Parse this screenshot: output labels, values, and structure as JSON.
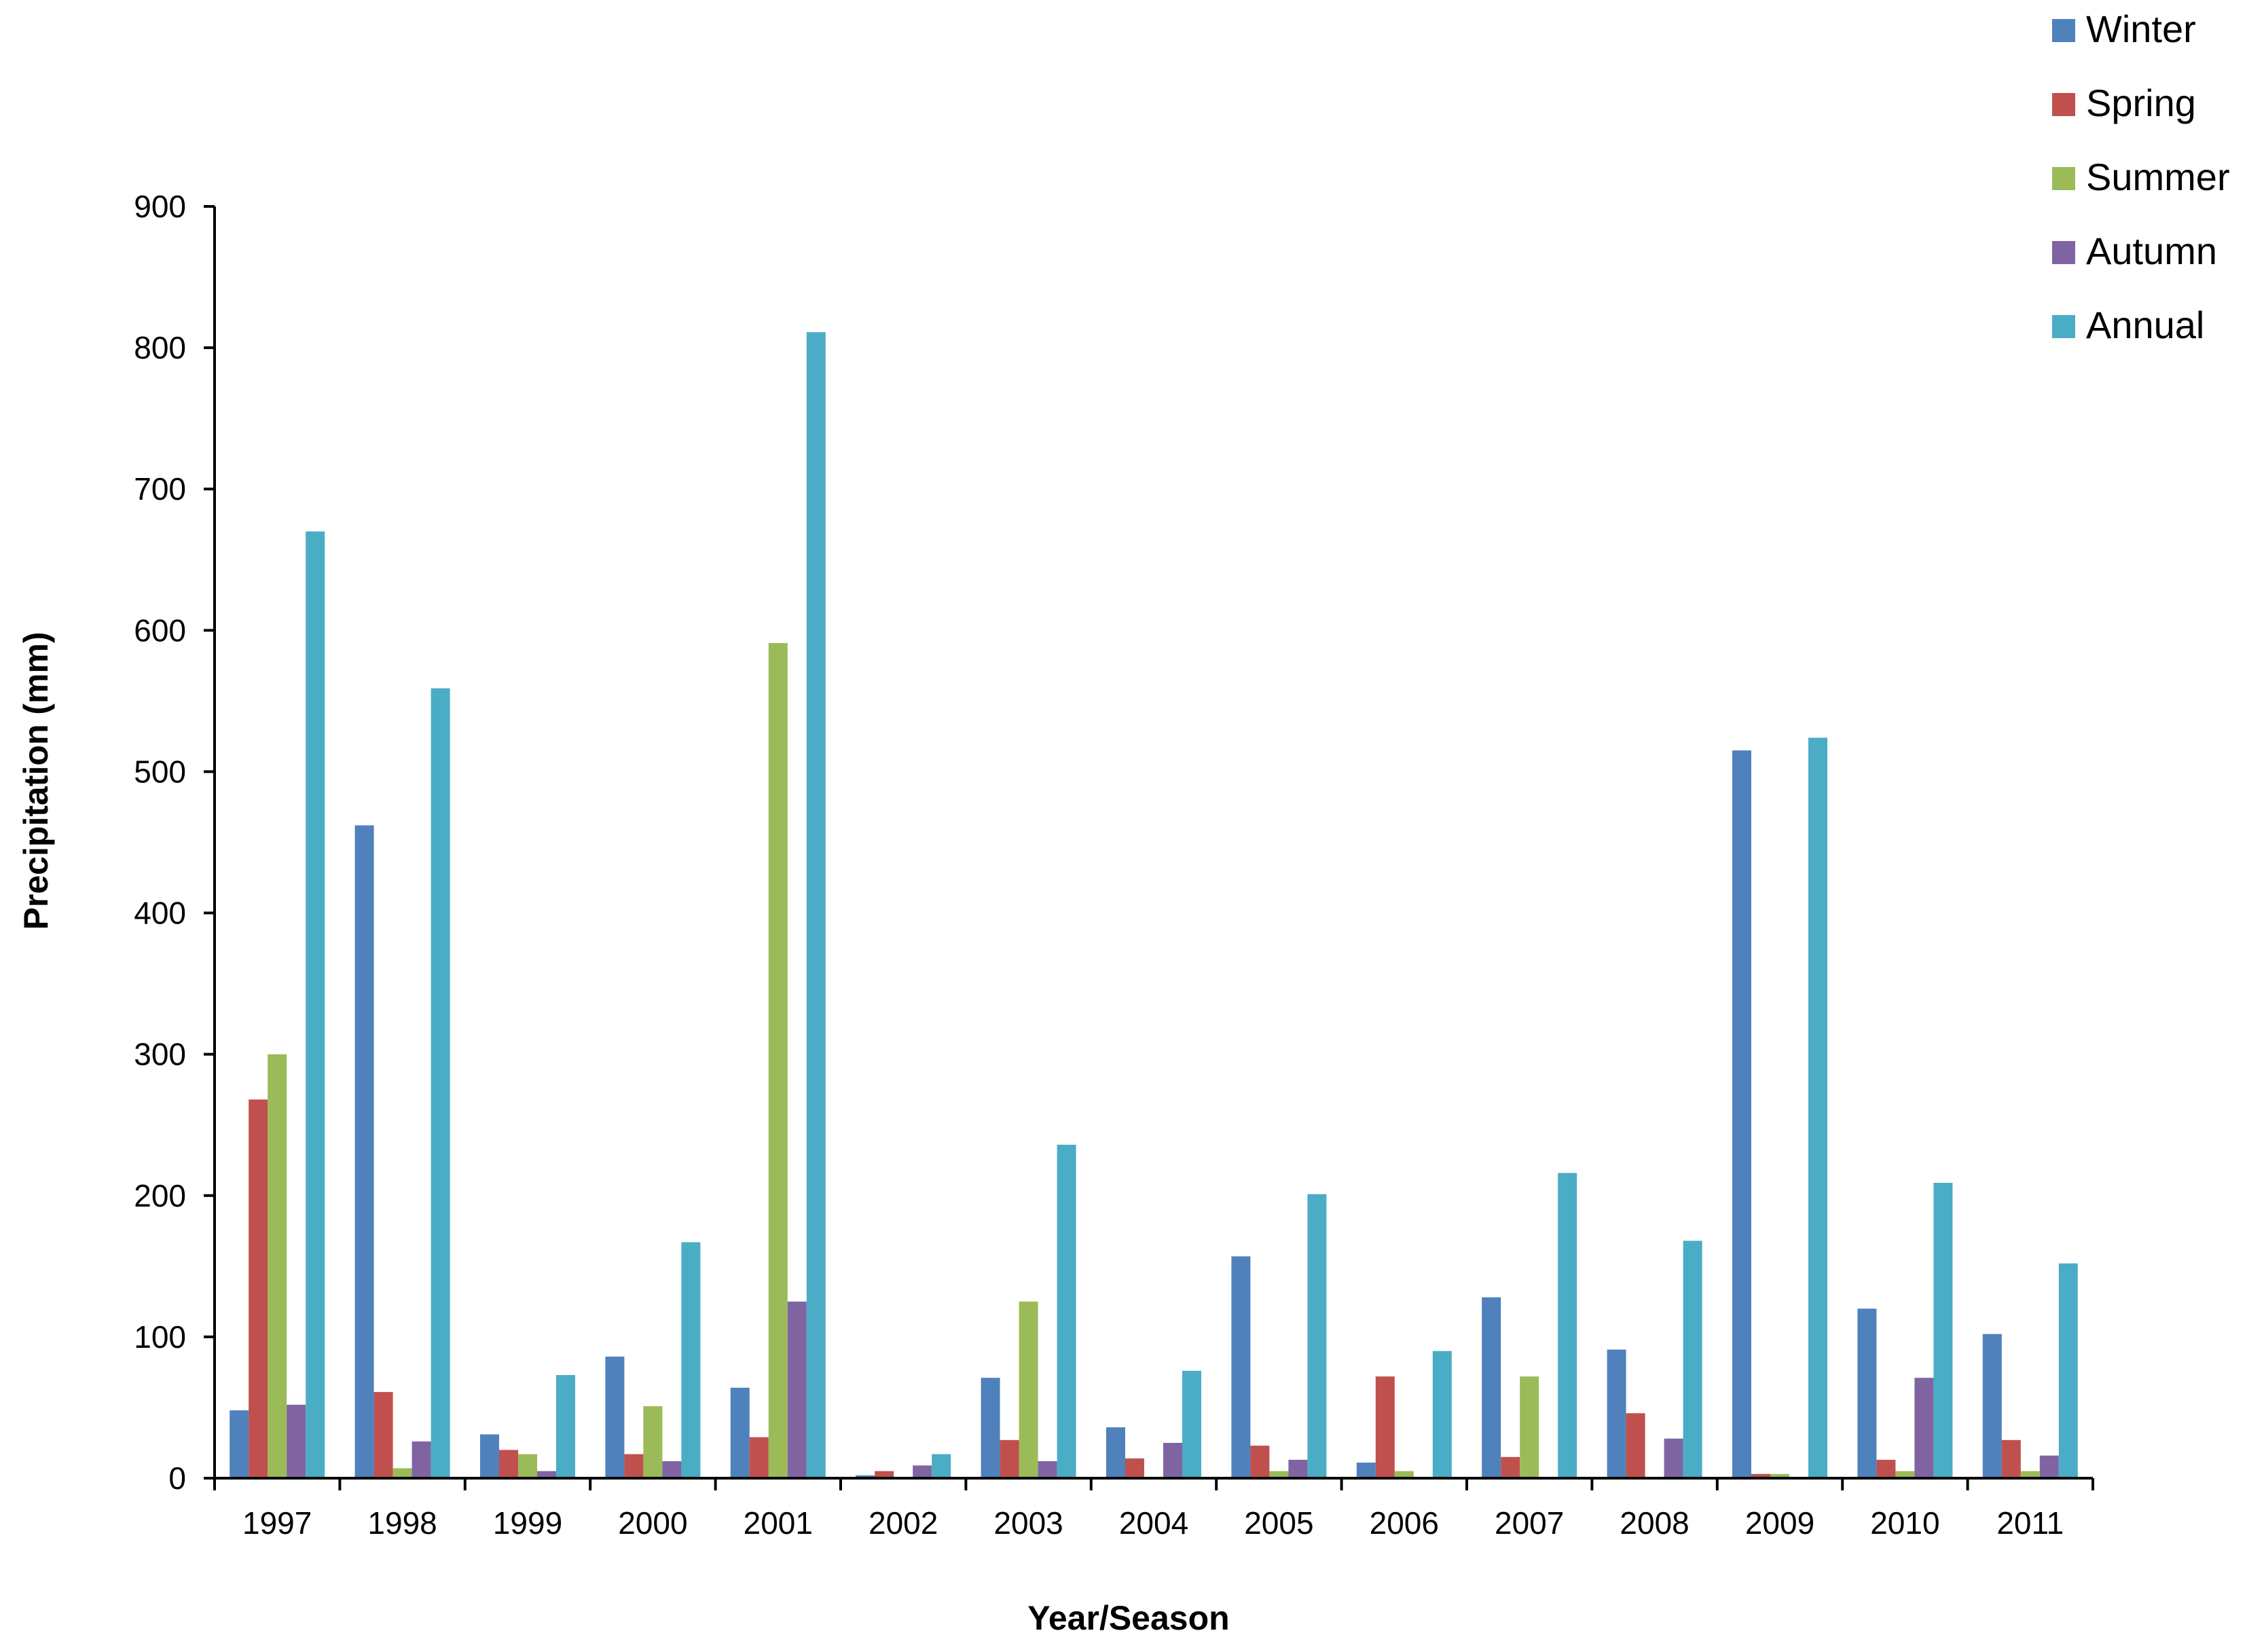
{
  "chart_data": {
    "type": "bar",
    "title": "",
    "xlabel": "Year/Season",
    "ylabel": "Precipitation (mm)",
    "ylim": [
      0,
      900
    ],
    "yticks": [
      0,
      100,
      200,
      300,
      400,
      500,
      600,
      700,
      800,
      900
    ],
    "grid": false,
    "legend_position": "top-right",
    "categories": [
      "1997",
      "1998",
      "1999",
      "2000",
      "2001",
      "2002",
      "2003",
      "2004",
      "2005",
      "2006",
      "2007",
      "2008",
      "2009",
      "2010",
      "2011"
    ],
    "series": [
      {
        "name": "Winter",
        "color": "#4F81BD",
        "values": [
          48,
          462,
          31,
          86,
          64,
          2,
          71,
          36,
          157,
          11,
          128,
          91,
          515,
          120,
          102
        ]
      },
      {
        "name": "Spring",
        "color": "#C0504D",
        "values": [
          268,
          61,
          20,
          17,
          29,
          5,
          27,
          14,
          23,
          72,
          15,
          46,
          3,
          13,
          27
        ]
      },
      {
        "name": "Summer",
        "color": "#9BBB59",
        "values": [
          300,
          7,
          17,
          51,
          591,
          0,
          125,
          0,
          5,
          5,
          72,
          0,
          3,
          5,
          5
        ]
      },
      {
        "name": "Autumn",
        "color": "#8064A2",
        "values": [
          52,
          26,
          5,
          12,
          125,
          9,
          12,
          25,
          13,
          0,
          0,
          28,
          0,
          71,
          16
        ]
      },
      {
        "name": "Annual",
        "color": "#4BACC6",
        "values": [
          670,
          559,
          73,
          167,
          811,
          17,
          236,
          76,
          201,
          90,
          216,
          168,
          524,
          209,
          152
        ]
      }
    ]
  }
}
